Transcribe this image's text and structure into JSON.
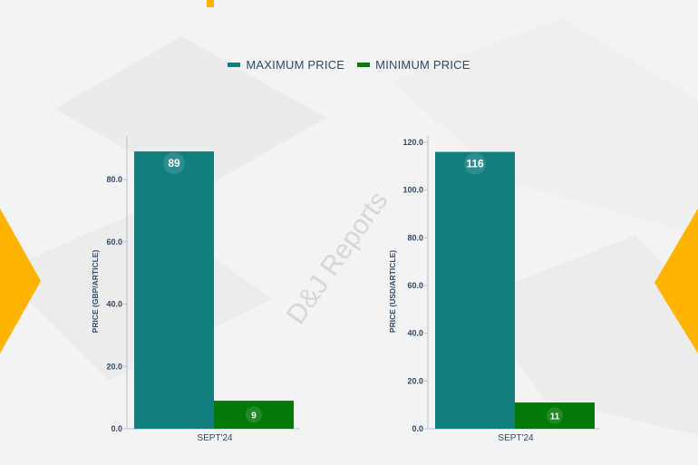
{
  "colors": {
    "max": "#127e7e",
    "min": "#037a08",
    "accent": "#ffb400",
    "text": "#2f4a6a",
    "axis": "#b9c2cc"
  },
  "legend": {
    "max_label": "MAXIMUM PRICE",
    "min_label": "MINIMUM PRICE"
  },
  "watermark": "D&J Reports",
  "chart_data": [
    {
      "type": "bar",
      "categories": [
        "SEPT'24"
      ],
      "series": [
        {
          "name": "MAXIMUM PRICE",
          "values": [
            89
          ]
        },
        {
          "name": "MINIMUM PRICE",
          "values": [
            9
          ]
        }
      ],
      "ylabel": "PRICE (GBP/ARTICLE)",
      "ylim": [
        0,
        90
      ],
      "yticks": [
        "0.0",
        "20.0",
        "40.0",
        "60.0",
        "80.0"
      ],
      "yticks_values": [
        0,
        20,
        40,
        60,
        80
      ],
      "data_labels": [
        "89",
        "9"
      ]
    },
    {
      "type": "bar",
      "categories": [
        "SEPT'24"
      ],
      "series": [
        {
          "name": "MAXIMUM PRICE",
          "values": [
            116
          ]
        },
        {
          "name": "MINIMUM PRICE",
          "values": [
            11
          ]
        }
      ],
      "ylabel": "PRICE (USD/ARTICLE)",
      "ylim": [
        0,
        122
      ],
      "yticks": [
        "0.0",
        "20.0",
        "40.0",
        "60.0",
        "80.0",
        "100.0",
        "120.0"
      ],
      "yticks_values": [
        0,
        20,
        40,
        60,
        80,
        100,
        120
      ],
      "data_labels": [
        "116",
        "11"
      ]
    }
  ]
}
